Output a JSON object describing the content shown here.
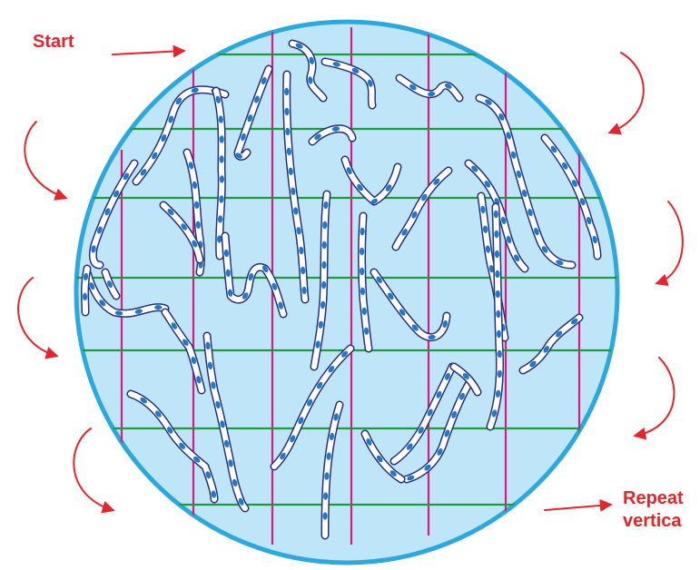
{
  "labels": {
    "start": "Start",
    "repeat_line1": "Repeat",
    "repeat_line2": "vertica"
  },
  "colors": {
    "circle_fill": "#bfe6f8",
    "circle_edge": "#29a9e0",
    "horizontal_lines": "#1a9c3a",
    "vertical_lines": "#d81b7f",
    "arrows": "#e8242b",
    "fiber_outline": "#2b2f7a",
    "fiber_fill": "#ffffff",
    "fiber_spots": "#1f78c8"
  }
}
